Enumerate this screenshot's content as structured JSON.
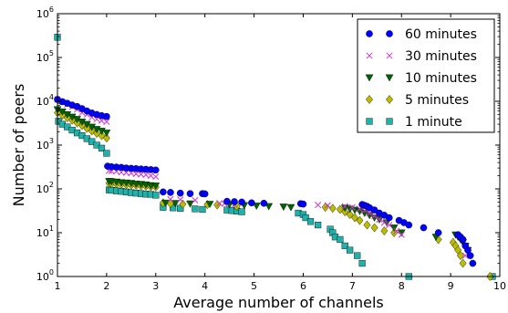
{
  "chart_data": {
    "type": "scatter",
    "title": "",
    "xlabel": "Average number of channels",
    "ylabel": "Number of peers",
    "xlim": [
      1,
      10
    ],
    "ylim": [
      1,
      1000000
    ],
    "yscale": "log",
    "x_ticks": [
      "1",
      "2",
      "3",
      "4",
      "5",
      "6",
      "7",
      "8",
      "9",
      "10"
    ],
    "y_ticks": [
      {
        "base": "10",
        "exp": "0"
      },
      {
        "base": "10",
        "exp": "1"
      },
      {
        "base": "10",
        "exp": "2"
      },
      {
        "base": "10",
        "exp": "3"
      },
      {
        "base": "10",
        "exp": "4"
      },
      {
        "base": "10",
        "exp": "5"
      },
      {
        "base": "10",
        "exp": "6"
      }
    ],
    "grid": false,
    "legend_position": "top-right",
    "series": [
      {
        "name": "60 minutes",
        "marker": "circle",
        "color": "#0000ff",
        "points": [
          [
            1.0,
            11000
          ],
          [
            1.1,
            9800
          ],
          [
            1.2,
            9000
          ],
          [
            1.3,
            8200
          ],
          [
            1.4,
            7600
          ],
          [
            1.5,
            6800
          ],
          [
            1.6,
            6000
          ],
          [
            1.7,
            5400
          ],
          [
            1.8,
            5000
          ],
          [
            1.9,
            4700
          ],
          [
            2.0,
            4500
          ],
          [
            2.02,
            330
          ],
          [
            2.1,
            320
          ],
          [
            2.2,
            315
          ],
          [
            2.3,
            310
          ],
          [
            2.4,
            300
          ],
          [
            2.5,
            295
          ],
          [
            2.6,
            290
          ],
          [
            2.7,
            285
          ],
          [
            2.8,
            280
          ],
          [
            2.9,
            275
          ],
          [
            3.0,
            270
          ],
          [
            3.15,
            85
          ],
          [
            3.3,
            83
          ],
          [
            3.5,
            80
          ],
          [
            3.7,
            78
          ],
          [
            3.95,
            78
          ],
          [
            4.0,
            77
          ],
          [
            4.45,
            52
          ],
          [
            4.6,
            51
          ],
          [
            4.75,
            50
          ],
          [
            4.95,
            48
          ],
          [
            5.2,
            47
          ],
          [
            5.95,
            46
          ],
          [
            6.0,
            45
          ],
          [
            7.2,
            44
          ],
          [
            7.25,
            42
          ],
          [
            7.3,
            40
          ],
          [
            7.35,
            37
          ],
          [
            7.45,
            33
          ],
          [
            7.55,
            28
          ],
          [
            7.65,
            25
          ],
          [
            7.75,
            22
          ],
          [
            7.95,
            19
          ],
          [
            8.05,
            17
          ],
          [
            8.15,
            15
          ],
          [
            8.45,
            13
          ],
          [
            8.75,
            10
          ],
          [
            9.15,
            9
          ],
          [
            9.2,
            8
          ],
          [
            9.25,
            7
          ],
          [
            9.3,
            5
          ],
          [
            9.35,
            4
          ],
          [
            9.4,
            3
          ],
          [
            9.45,
            2
          ]
        ]
      },
      {
        "name": "30 minutes",
        "marker": "x",
        "color": "#cc33cc",
        "points": [
          [
            1.0,
            11000
          ],
          [
            1.1,
            9500
          ],
          [
            1.2,
            8500
          ],
          [
            1.3,
            7500
          ],
          [
            1.4,
            6500
          ],
          [
            1.5,
            5500
          ],
          [
            1.6,
            5000
          ],
          [
            1.7,
            4300
          ],
          [
            1.8,
            3900
          ],
          [
            1.9,
            3600
          ],
          [
            2.0,
            3400
          ],
          [
            2.05,
            260
          ],
          [
            2.1,
            255
          ],
          [
            2.2,
            250
          ],
          [
            2.3,
            240
          ],
          [
            2.4,
            235
          ],
          [
            2.5,
            230
          ],
          [
            2.6,
            220
          ],
          [
            2.7,
            215
          ],
          [
            2.8,
            210
          ],
          [
            2.9,
            200
          ],
          [
            3.0,
            190
          ],
          [
            3.3,
            58
          ],
          [
            3.5,
            57
          ],
          [
            3.8,
            55
          ],
          [
            4.3,
            47
          ],
          [
            4.4,
            46
          ],
          [
            4.6,
            44
          ],
          [
            6.3,
            43
          ],
          [
            6.5,
            42
          ],
          [
            6.85,
            40
          ],
          [
            7.0,
            38
          ],
          [
            7.15,
            35
          ],
          [
            7.25,
            32
          ],
          [
            7.35,
            28
          ],
          [
            7.45,
            24
          ],
          [
            7.55,
            20
          ],
          [
            7.65,
            17
          ],
          [
            7.75,
            15
          ],
          [
            7.9,
            11
          ],
          [
            8.0,
            9
          ],
          [
            9.3,
            3
          ]
        ]
      },
      {
        "name": "10 minutes",
        "marker": "triangle-down",
        "color": "#006400",
        "points": [
          [
            1.0,
            6500
          ],
          [
            1.1,
            5800
          ],
          [
            1.2,
            5000
          ],
          [
            1.3,
            4400
          ],
          [
            1.4,
            3900
          ],
          [
            1.5,
            3400
          ],
          [
            1.6,
            3000
          ],
          [
            1.7,
            2600
          ],
          [
            1.8,
            2300
          ],
          [
            1.9,
            2100
          ],
          [
            2.0,
            1900
          ],
          [
            2.05,
            150
          ],
          [
            2.1,
            148
          ],
          [
            2.2,
            145
          ],
          [
            2.3,
            140
          ],
          [
            2.4,
            138
          ],
          [
            2.5,
            135
          ],
          [
            2.6,
            130
          ],
          [
            2.7,
            128
          ],
          [
            2.8,
            125
          ],
          [
            2.9,
            120
          ],
          [
            3.0,
            118
          ],
          [
            3.2,
            48
          ],
          [
            3.4,
            47
          ],
          [
            3.7,
            46
          ],
          [
            4.1,
            45
          ],
          [
            4.5,
            44
          ],
          [
            4.8,
            42
          ],
          [
            5.05,
            41
          ],
          [
            5.3,
            40
          ],
          [
            5.6,
            39
          ],
          [
            5.75,
            38
          ],
          [
            6.85,
            37
          ],
          [
            6.95,
            35
          ],
          [
            7.05,
            33
          ],
          [
            7.15,
            31
          ],
          [
            7.25,
            28
          ],
          [
            7.35,
            25
          ],
          [
            7.45,
            22
          ],
          [
            7.55,
            20
          ],
          [
            7.7,
            17
          ],
          [
            7.85,
            13
          ],
          [
            8.0,
            10
          ],
          [
            8.7,
            8
          ],
          [
            9.1,
            9
          ],
          [
            9.15,
            8
          ],
          [
            9.2,
            7
          ],
          [
            9.25,
            6
          ],
          [
            9.3,
            5
          ],
          [
            9.35,
            4
          ]
        ]
      },
      {
        "name": "5 minutes",
        "marker": "diamond",
        "color": "#bbbb00",
        "points": [
          [
            1.0,
            5500
          ],
          [
            1.1,
            4800
          ],
          [
            1.2,
            4200
          ],
          [
            1.3,
            3700
          ],
          [
            1.4,
            3200
          ],
          [
            1.5,
            2800
          ],
          [
            1.6,
            2400
          ],
          [
            1.7,
            2100
          ],
          [
            1.8,
            1850
          ],
          [
            1.9,
            1650
          ],
          [
            2.0,
            1450
          ],
          [
            2.05,
            135
          ],
          [
            2.1,
            132
          ],
          [
            2.2,
            130
          ],
          [
            2.3,
            127
          ],
          [
            2.4,
            125
          ],
          [
            2.5,
            122
          ],
          [
            2.6,
            120
          ],
          [
            2.7,
            117
          ],
          [
            2.8,
            115
          ],
          [
            2.9,
            112
          ],
          [
            3.0,
            110
          ],
          [
            3.15,
            48
          ],
          [
            3.3,
            46
          ],
          [
            3.55,
            45
          ],
          [
            4.05,
            44
          ],
          [
            4.25,
            43
          ],
          [
            4.65,
            40
          ],
          [
            6.45,
            38
          ],
          [
            6.6,
            36
          ],
          [
            6.75,
            34
          ],
          [
            6.85,
            30
          ],
          [
            6.95,
            26
          ],
          [
            7.05,
            22
          ],
          [
            7.15,
            19
          ],
          [
            7.3,
            15
          ],
          [
            7.45,
            13
          ],
          [
            7.65,
            11
          ],
          [
            7.85,
            10
          ],
          [
            8.75,
            7
          ],
          [
            9.05,
            6
          ],
          [
            9.1,
            5
          ],
          [
            9.15,
            4
          ],
          [
            9.2,
            3
          ],
          [
            9.25,
            2
          ],
          [
            9.8,
            1
          ]
        ]
      },
      {
        "name": "1 minute",
        "marker": "square",
        "color": "#20b2aa",
        "points": [
          [
            1.0,
            290000
          ],
          [
            1.02,
            3500
          ],
          [
            1.1,
            3000
          ],
          [
            1.2,
            2600
          ],
          [
            1.3,
            2200
          ],
          [
            1.4,
            1900
          ],
          [
            1.5,
            1650
          ],
          [
            1.6,
            1400
          ],
          [
            1.7,
            1200
          ],
          [
            1.8,
            1000
          ],
          [
            1.9,
            850
          ],
          [
            2.0,
            650
          ],
          [
            2.05,
            95
          ],
          [
            2.1,
            93
          ],
          [
            2.2,
            90
          ],
          [
            2.3,
            88
          ],
          [
            2.4,
            85
          ],
          [
            2.5,
            82
          ],
          [
            2.6,
            80
          ],
          [
            2.7,
            78
          ],
          [
            2.8,
            76
          ],
          [
            2.9,
            75
          ],
          [
            3.0,
            72
          ],
          [
            3.15,
            38
          ],
          [
            3.35,
            37
          ],
          [
            3.5,
            36
          ],
          [
            3.8,
            35
          ],
          [
            3.95,
            34
          ],
          [
            4.45,
            33
          ],
          [
            4.55,
            32
          ],
          [
            4.65,
            31
          ],
          [
            4.75,
            30
          ],
          [
            5.9,
            28
          ],
          [
            6.0,
            26
          ],
          [
            6.05,
            22
          ],
          [
            6.15,
            18
          ],
          [
            6.3,
            15
          ],
          [
            6.55,
            12
          ],
          [
            6.6,
            10
          ],
          [
            6.65,
            8
          ],
          [
            6.75,
            7
          ],
          [
            6.85,
            5
          ],
          [
            6.95,
            4
          ],
          [
            7.1,
            3
          ],
          [
            7.2,
            2
          ],
          [
            8.15,
            1
          ],
          [
            9.85,
            1
          ]
        ]
      }
    ]
  }
}
